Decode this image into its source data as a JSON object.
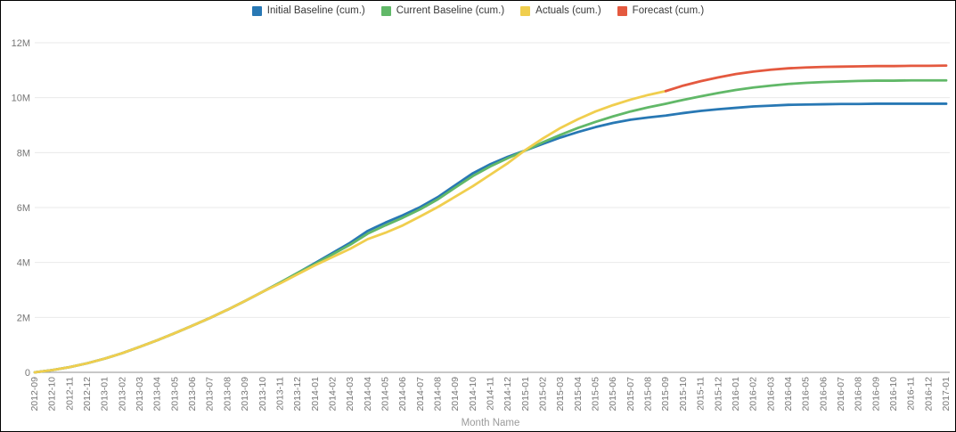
{
  "chart_data": {
    "type": "line",
    "title": "",
    "xlabel": "Month Name",
    "ylabel": "",
    "ylim_M": [
      0,
      12
    ],
    "y_tick_labels": [
      "0",
      "2M",
      "4M",
      "6M",
      "8M",
      "10M",
      "12M"
    ],
    "legend_position": "top-center",
    "grid": "horizontal",
    "categories": [
      "2012-09",
      "2012-10",
      "2012-11",
      "2012-12",
      "2013-01",
      "2013-02",
      "2013-03",
      "2013-04",
      "2013-05",
      "2013-06",
      "2013-07",
      "2013-08",
      "2013-09",
      "2013-10",
      "2013-11",
      "2013-12",
      "2014-01",
      "2014-02",
      "2014-03",
      "2014-04",
      "2014-05",
      "2014-06",
      "2014-07",
      "2014-08",
      "2014-09",
      "2014-10",
      "2014-11",
      "2014-12",
      "2015-01",
      "2015-02",
      "2015-03",
      "2015-04",
      "2015-05",
      "2015-06",
      "2015-07",
      "2015-08",
      "2015-09",
      "2015-10",
      "2015-11",
      "2015-12",
      "2016-01",
      "2016-02",
      "2016-03",
      "2016-04",
      "2016-05",
      "2016-06",
      "2016-07",
      "2016-08",
      "2016-09",
      "2016-10",
      "2016-11",
      "2016-12",
      "2017-01"
    ],
    "values_unit": "millions",
    "series": [
      {
        "name": "Initial Baseline (cum.)",
        "color": "#2878b4",
        "values_M": [
          0.0,
          0.08,
          0.19,
          0.33,
          0.5,
          0.7,
          0.93,
          1.17,
          1.43,
          1.7,
          1.98,
          2.28,
          2.6,
          2.93,
          3.27,
          3.62,
          3.98,
          4.35,
          4.72,
          5.15,
          5.45,
          5.72,
          6.02,
          6.38,
          6.82,
          7.25,
          7.58,
          7.85,
          8.08,
          8.32,
          8.55,
          8.75,
          8.93,
          9.08,
          9.2,
          9.28,
          9.35,
          9.44,
          9.52,
          9.58,
          9.63,
          9.68,
          9.71,
          9.74,
          9.75,
          9.76,
          9.77,
          9.77,
          9.78,
          9.78,
          9.78,
          9.78,
          9.78
        ]
      },
      {
        "name": "Current Baseline (cum.)",
        "color": "#61b868",
        "values_M": [
          0.0,
          0.08,
          0.19,
          0.33,
          0.5,
          0.7,
          0.93,
          1.17,
          1.43,
          1.7,
          1.98,
          2.28,
          2.6,
          2.93,
          3.27,
          3.62,
          3.95,
          4.3,
          4.65,
          5.05,
          5.35,
          5.63,
          5.94,
          6.3,
          6.73,
          7.15,
          7.5,
          7.8,
          8.08,
          8.38,
          8.65,
          8.9,
          9.12,
          9.32,
          9.5,
          9.65,
          9.78,
          9.92,
          10.05,
          10.17,
          10.28,
          10.37,
          10.44,
          10.5,
          10.54,
          10.57,
          10.59,
          10.61,
          10.62,
          10.62,
          10.63,
          10.63,
          10.63
        ]
      },
      {
        "name": "Actuals (cum.)",
        "color": "#f0ce4e",
        "values_M": [
          0.0,
          0.08,
          0.19,
          0.33,
          0.5,
          0.7,
          0.93,
          1.17,
          1.43,
          1.7,
          1.98,
          2.28,
          2.6,
          2.93,
          3.24,
          3.57,
          3.9,
          4.2,
          4.5,
          4.85,
          5.08,
          5.35,
          5.68,
          6.02,
          6.4,
          6.78,
          7.2,
          7.62,
          8.1,
          8.52,
          8.9,
          9.22,
          9.5,
          9.73,
          9.93,
          10.1,
          10.24,
          null,
          null,
          null,
          null,
          null,
          null,
          null,
          null,
          null,
          null,
          null,
          null,
          null,
          null,
          null,
          null
        ]
      },
      {
        "name": "Forecast (cum.)",
        "color": "#e4593f",
        "values_M": [
          null,
          null,
          null,
          null,
          null,
          null,
          null,
          null,
          null,
          null,
          null,
          null,
          null,
          null,
          null,
          null,
          null,
          null,
          null,
          null,
          null,
          null,
          null,
          null,
          null,
          null,
          null,
          null,
          null,
          null,
          null,
          null,
          null,
          null,
          null,
          null,
          10.24,
          10.44,
          10.6,
          10.74,
          10.86,
          10.95,
          11.02,
          11.07,
          11.1,
          11.12,
          11.13,
          11.14,
          11.15,
          11.15,
          11.16,
          11.16,
          11.17
        ]
      }
    ]
  }
}
